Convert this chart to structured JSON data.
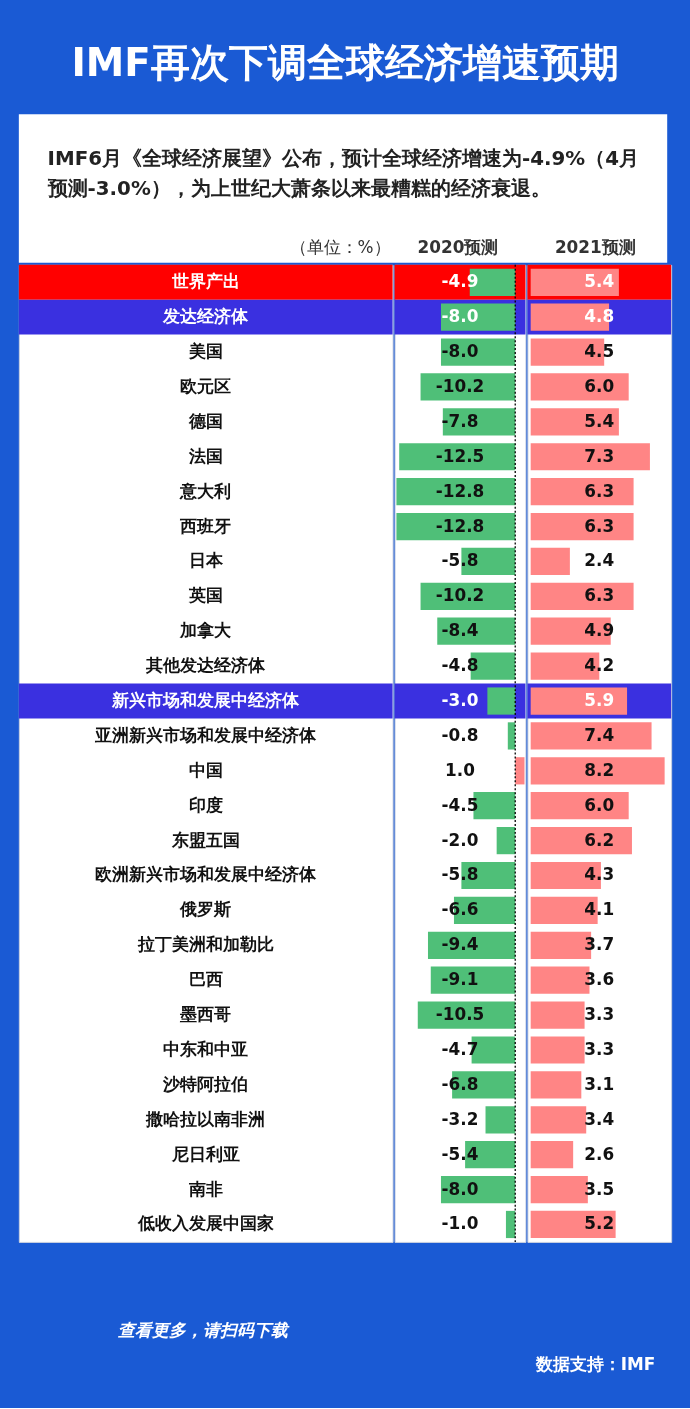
{
  "chart_data": [
    {
      "type": "bar",
      "orientation": "horizontal",
      "title": "IMF再次下调全球经济增速预期",
      "subtitle": "IMF6月《全球经济展望》公布，预计全球经济增速为-4.9%（4月预测-3.0%），为上世纪大萧条以来最糟糕的经济衰退。",
      "ylabel": "（单位：%）",
      "xlabel": "2020预测",
      "categories": [
        "世界产出",
        "发达经济体",
        "美国",
        "欧元区",
        "德国",
        "法国",
        "意大利",
        "西班牙",
        "日本",
        "英国",
        "加拿大",
        "其他发达经济体",
        "新兴市场和发展中经济体",
        "亚洲新兴市场和发展中经济体",
        "中国",
        "印度",
        "东盟五国",
        "欧洲新兴市场和发展中经济体",
        "俄罗斯",
        "拉丁美洲和加勒比",
        "巴西",
        "墨西哥",
        "中东和中亚",
        "沙特阿拉伯",
        "撒哈拉以南非洲",
        "尼日利亚",
        "南非",
        "低收入发展中国家"
      ],
      "values": [
        -4.9,
        -8.0,
        -8.0,
        -10.2,
        -7.8,
        -12.5,
        -12.8,
        -12.8,
        -5.8,
        -10.2,
        -8.4,
        -4.8,
        -3.0,
        -0.8,
        1.0,
        -4.5,
        -2.0,
        -5.8,
        -6.6,
        -9.4,
        -9.1,
        -10.5,
        -4.7,
        -6.8,
        -3.2,
        -5.4,
        -8.0,
        -1.0
      ],
      "value_labels": [
        "-4.9",
        "-8.0",
        "-8.0",
        "-10.2",
        "-7.8",
        "-12.5",
        "-12.8",
        "-12.8",
        "-5.8",
        "-10.2",
        "-8.4",
        "-4.8",
        "-3.0",
        "-0.8",
        "1.0",
        "-4.5",
        "-2.0",
        "-5.8",
        "-6.6",
        "-9.4",
        "-9.1",
        "-10.5",
        "-4.7",
        "-6.8",
        "-3.2",
        "-5.4",
        "-8.0",
        "-1.0"
      ],
      "colors": [
        "#4fbf78",
        "#4fbf78",
        "#4fbf78",
        "#4fbf78",
        "#4fbf78",
        "#4fbf78",
        "#4fbf78",
        "#4fbf78",
        "#4fbf78",
        "#4fbf78",
        "#4fbf78",
        "#4fbf78",
        "#4fbf78",
        "#4fbf78",
        "#ff8585",
        "#4fbf78",
        "#4fbf78",
        "#4fbf78",
        "#4fbf78",
        "#4fbf78",
        "#4fbf78",
        "#4fbf78",
        "#4fbf78",
        "#4fbf78",
        "#4fbf78",
        "#4fbf78",
        "#4fbf78",
        "#4fbf78"
      ],
      "xlim": [
        -13,
        1.1
      ],
      "tick_labels": "y",
      "ref_lines": [
        {
          "axis": "x",
          "value": 0,
          "color": "#000000",
          "line_style": "dotted"
        }
      ],
      "bands": [
        {
          "axis": "y",
          "from": "世界产出",
          "to": "世界产出",
          "color": "#ff0000"
        },
        {
          "axis": "y",
          "from": "发达经济体",
          "to": "发达经济体",
          "color": "#3a30e0"
        },
        {
          "axis": "y",
          "from": "新兴市场和发展中经济体",
          "to": "新兴市场和发展中经济体",
          "color": "#3a30e0"
        }
      ],
      "annotations": [
        "查看更多，请扫码下载",
        "数据支持：IMF"
      ]
    },
    {
      "type": "bar",
      "orientation": "horizontal",
      "xlabel": "2021预测",
      "categories": [
        "世界产出",
        "发达经济体",
        "美国",
        "欧元区",
        "德国",
        "法国",
        "意大利",
        "西班牙",
        "日本",
        "英国",
        "加拿大",
        "其他发达经济体",
        "新兴市场和发展中经济体",
        "亚洲新兴市场和发展中经济体",
        "中国",
        "印度",
        "东盟五国",
        "欧洲新兴市场和发展中经济体",
        "俄罗斯",
        "拉丁美洲和加勒比",
        "巴西",
        "墨西哥",
        "中东和中亚",
        "沙特阿拉伯",
        "撒哈拉以南非洲",
        "尼日利亚",
        "南非",
        "低收入发展中国家"
      ],
      "values": [
        5.4,
        4.8,
        4.5,
        6.0,
        5.4,
        7.3,
        6.3,
        6.3,
        2.4,
        6.3,
        4.9,
        4.2,
        5.9,
        7.4,
        8.2,
        6.0,
        6.2,
        4.3,
        4.1,
        3.7,
        3.6,
        3.3,
        3.3,
        3.1,
        3.4,
        2.6,
        3.5,
        5.2
      ],
      "value_labels": [
        "5.4",
        "4.8",
        "4.5",
        "6.0",
        "5.4",
        "7.3",
        "6.3",
        "6.3",
        "2.4",
        "6.3",
        "4.9",
        "4.2",
        "5.9",
        "7.4",
        "8.2",
        "6.0",
        "6.2",
        "4.3",
        "4.1",
        "3.7",
        "3.6",
        "3.3",
        "3.3",
        "3.1",
        "3.4",
        "2.6",
        "3.5",
        "5.2"
      ],
      "colors": [
        "#ff8585",
        "#ff8585",
        "#ff8585",
        "#ff8585",
        "#ff8585",
        "#ff8585",
        "#ff8585",
        "#ff8585",
        "#ff8585",
        "#ff8585",
        "#ff8585",
        "#ff8585",
        "#ff8585",
        "#ff8585",
        "#ff8585",
        "#ff8585",
        "#ff8585",
        "#ff8585",
        "#ff8585",
        "#ff8585",
        "#ff8585",
        "#ff8585",
        "#ff8585",
        "#ff8585",
        "#ff8585",
        "#ff8585",
        "#ff8585",
        "#ff8585"
      ],
      "xlim": [
        -0.2,
        8.6
      ],
      "tick_labels": false,
      "bands": [
        {
          "axis": "y",
          "from": "世界产出",
          "to": "世界产出",
          "color": "#ff0000"
        },
        {
          "axis": "y",
          "from": "发达经济体",
          "to": "发达经济体",
          "color": "#3a30e0"
        },
        {
          "axis": "y",
          "from": "新兴市场和发展中经济体",
          "to": "新兴市场和发展中经济体",
          "color": "#3a30e0"
        }
      ]
    }
  ]
}
